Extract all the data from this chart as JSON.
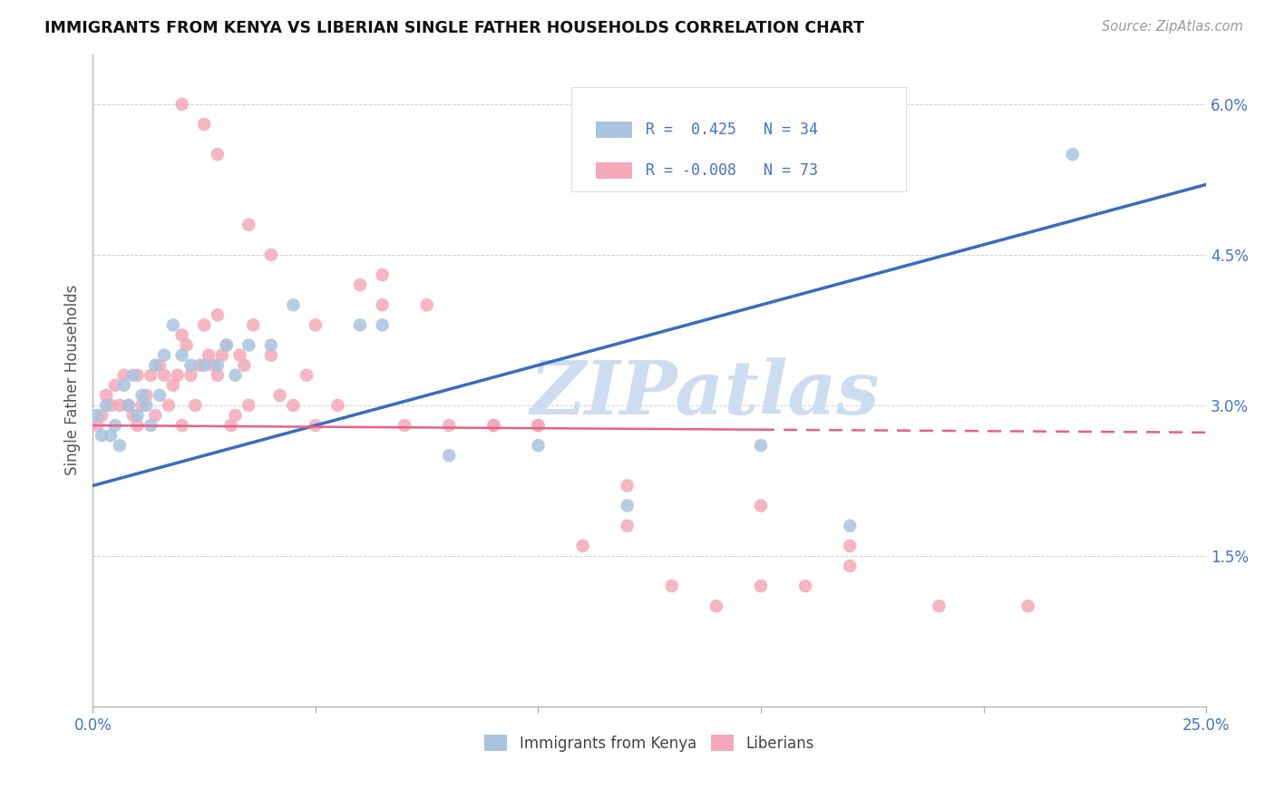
{
  "title": "IMMIGRANTS FROM KENYA VS LIBERIAN SINGLE FATHER HOUSEHOLDS CORRELATION CHART",
  "source": "Source: ZipAtlas.com",
  "ylabel": "Single Father Households",
  "xlim": [
    0.0,
    0.25
  ],
  "ylim": [
    0.0,
    0.065
  ],
  "xtick_vals": [
    0.0,
    0.05,
    0.1,
    0.15,
    0.2,
    0.25
  ],
  "xtick_labels": [
    "0.0%",
    "",
    "",
    "",
    "",
    "25.0%"
  ],
  "ytick_vals": [
    0.0,
    0.015,
    0.03,
    0.045,
    0.06
  ],
  "ytick_labels": [
    "",
    "1.5%",
    "3.0%",
    "4.5%",
    "6.0%"
  ],
  "legend_labels": [
    "Immigrants from Kenya",
    "Liberians"
  ],
  "blue_R": "0.425",
  "blue_N": "34",
  "pink_R": "-0.008",
  "pink_N": "73",
  "blue_color": "#a8c4e0",
  "pink_color": "#f4a8b8",
  "blue_line_color": "#3a6bbf",
  "pink_line_color": "#e8608a",
  "tick_color": "#4472c4",
  "label_color": "#555555",
  "watermark_color": "#ccddf0",
  "grid_color": "#cccccc",
  "blue_line_start_y": 0.022,
  "blue_line_end_y": 0.052,
  "pink_line_start_y": 0.028,
  "pink_line_end_y": 0.0273,
  "blue_x": [
    0.001,
    0.002,
    0.003,
    0.004,
    0.005,
    0.006,
    0.007,
    0.008,
    0.009,
    0.01,
    0.011,
    0.012,
    0.013,
    0.014,
    0.015,
    0.016,
    0.018,
    0.02,
    0.022,
    0.025,
    0.028,
    0.03,
    0.032,
    0.035,
    0.04,
    0.045,
    0.06,
    0.065,
    0.08,
    0.1,
    0.12,
    0.15,
    0.17,
    0.22
  ],
  "blue_y": [
    0.029,
    0.027,
    0.03,
    0.027,
    0.028,
    0.026,
    0.032,
    0.03,
    0.033,
    0.029,
    0.031,
    0.03,
    0.028,
    0.034,
    0.031,
    0.035,
    0.038,
    0.035,
    0.034,
    0.034,
    0.034,
    0.036,
    0.033,
    0.036,
    0.036,
    0.04,
    0.038,
    0.038,
    0.025,
    0.026,
    0.02,
    0.026,
    0.018,
    0.055
  ],
  "pink_x": [
    0.001,
    0.002,
    0.003,
    0.004,
    0.005,
    0.006,
    0.007,
    0.008,
    0.009,
    0.01,
    0.01,
    0.011,
    0.012,
    0.013,
    0.014,
    0.015,
    0.016,
    0.017,
    0.018,
    0.019,
    0.02,
    0.02,
    0.021,
    0.022,
    0.023,
    0.024,
    0.025,
    0.026,
    0.027,
    0.028,
    0.028,
    0.029,
    0.03,
    0.031,
    0.032,
    0.033,
    0.034,
    0.035,
    0.036,
    0.04,
    0.042,
    0.045,
    0.048,
    0.05,
    0.055,
    0.06,
    0.065,
    0.07,
    0.08,
    0.09,
    0.1,
    0.11,
    0.12,
    0.13,
    0.14,
    0.15,
    0.16,
    0.17,
    0.02,
    0.025,
    0.028,
    0.035,
    0.04,
    0.05,
    0.065,
    0.075,
    0.09,
    0.1,
    0.12,
    0.15,
    0.17,
    0.19,
    0.21
  ],
  "pink_y": [
    0.028,
    0.029,
    0.031,
    0.03,
    0.032,
    0.03,
    0.033,
    0.03,
    0.029,
    0.033,
    0.028,
    0.03,
    0.031,
    0.033,
    0.029,
    0.034,
    0.033,
    0.03,
    0.032,
    0.033,
    0.037,
    0.028,
    0.036,
    0.033,
    0.03,
    0.034,
    0.038,
    0.035,
    0.034,
    0.039,
    0.033,
    0.035,
    0.036,
    0.028,
    0.029,
    0.035,
    0.034,
    0.03,
    0.038,
    0.035,
    0.031,
    0.03,
    0.033,
    0.028,
    0.03,
    0.042,
    0.04,
    0.028,
    0.028,
    0.028,
    0.028,
    0.016,
    0.018,
    0.012,
    0.01,
    0.012,
    0.012,
    0.014,
    0.06,
    0.058,
    0.055,
    0.048,
    0.045,
    0.038,
    0.043,
    0.04,
    0.028,
    0.028,
    0.022,
    0.02,
    0.016,
    0.01,
    0.01
  ]
}
